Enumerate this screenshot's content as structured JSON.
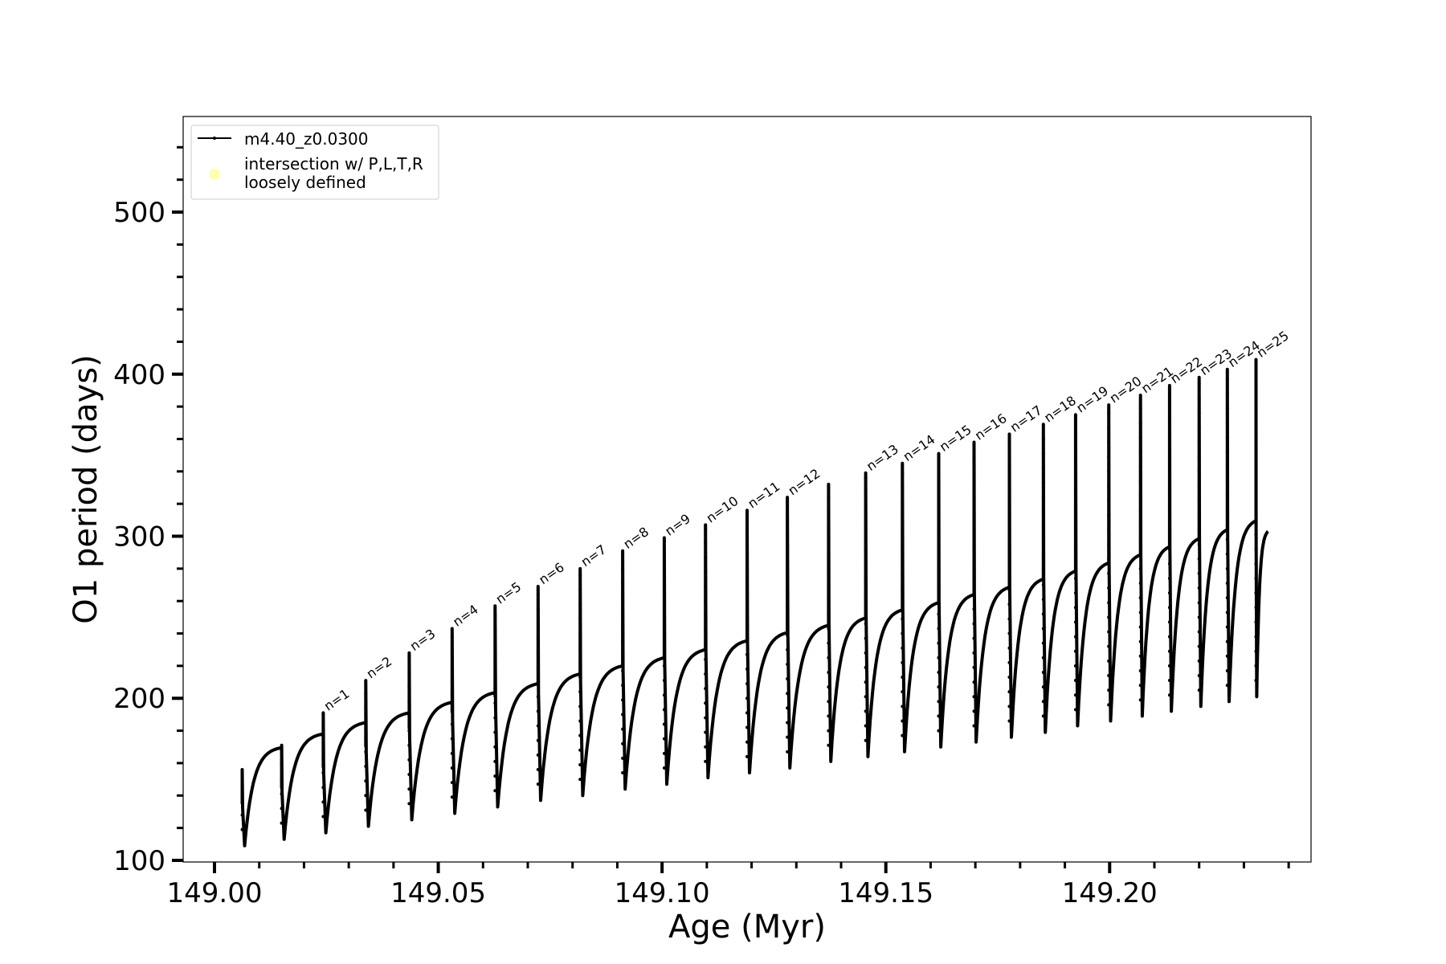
{
  "chart_data": {
    "type": "line",
    "xlabel": "Age (Myr)",
    "ylabel": "O1 period (days)",
    "xlim": [
      148.993,
      149.245
    ],
    "ylim": [
      99,
      559
    ],
    "xticks": [
      149.0,
      149.05,
      149.1,
      149.15,
      149.2
    ],
    "xtick_labels": [
      "149.00",
      "149.05",
      "149.10",
      "149.15",
      "149.20"
    ],
    "x_minor_step": 0.01,
    "yticks": [
      100,
      200,
      300,
      400,
      500
    ],
    "ytick_labels": [
      "100",
      "200",
      "300",
      "400",
      "500"
    ],
    "y_minor_step": 20,
    "grid": false,
    "legend": {
      "position": "top-left",
      "entries": [
        {
          "label": "m4.40_z0.0300",
          "marker": "line-dot",
          "color": "#000000"
        },
        {
          "label_lines": [
            "intersection w/ P,L,T,R",
            "loosely defined"
          ],
          "marker": "circle",
          "color": "#ffffb0"
        }
      ]
    },
    "series": [
      {
        "name": "m4.40_z0.0300",
        "color": "#000000",
        "initial": {
          "x": 149.0062,
          "peak": 156,
          "min": 109,
          "end": 169.5
        },
        "pulses": [
          {
            "x": 149.015,
            "peak": 171,
            "min": 113,
            "end": 178
          },
          {
            "x": 149.0243,
            "peak": 191,
            "min": 117,
            "end": 185
          },
          {
            "x": 149.0338,
            "peak": 211,
            "min": 121,
            "end": 191
          },
          {
            "x": 149.0435,
            "peak": 228,
            "min": 125,
            "end": 197.5
          },
          {
            "x": 149.0531,
            "peak": 243,
            "min": 129,
            "end": 203.5
          },
          {
            "x": 149.0627,
            "peak": 257,
            "min": 133,
            "end": 209
          },
          {
            "x": 149.0723,
            "peak": 269,
            "min": 137,
            "end": 215
          },
          {
            "x": 149.0817,
            "peak": 280,
            "min": 140,
            "end": 220
          },
          {
            "x": 149.0912,
            "peak": 291,
            "min": 144,
            "end": 225
          },
          {
            "x": 149.1005,
            "peak": 299,
            "min": 147,
            "end": 230
          },
          {
            "x": 149.1097,
            "peak": 307,
            "min": 151,
            "end": 235.5
          },
          {
            "x": 149.119,
            "peak": 316,
            "min": 154,
            "end": 240.5
          },
          {
            "x": 149.128,
            "peak": 324,
            "min": 157,
            "end": 245
          },
          {
            "x": 149.1372,
            "peak": 332,
            "min": 161,
            "end": 249.5
          },
          {
            "x": 149.1455,
            "peak": 339,
            "min": 164,
            "end": 254.5
          },
          {
            "x": 149.1537,
            "peak": 345,
            "min": 167,
            "end": 259
          },
          {
            "x": 149.1618,
            "peak": 351,
            "min": 170,
            "end": 264
          },
          {
            "x": 149.1697,
            "peak": 358,
            "min": 173,
            "end": 268.5
          },
          {
            "x": 149.1776,
            "peak": 363,
            "min": 176,
            "end": 273.5
          },
          {
            "x": 149.1852,
            "peak": 369,
            "min": 179,
            "end": 278.5
          },
          {
            "x": 149.1924,
            "peak": 375,
            "min": 183,
            "end": 283.5
          },
          {
            "x": 149.1998,
            "peak": 381,
            "min": 186,
            "end": 288.5
          },
          {
            "x": 149.2069,
            "peak": 387,
            "min": 189,
            "end": 293.5
          },
          {
            "x": 149.2134,
            "peak": 393,
            "min": 192,
            "end": 298.5
          },
          {
            "x": 149.22,
            "peak": 398,
            "min": 195,
            "end": 304
          },
          {
            "x": 149.2263,
            "peak": 403,
            "min": 198,
            "end": 309.5
          },
          {
            "x": 149.2327,
            "peak": 409,
            "min": 201,
            "end": 303
          }
        ]
      }
    ],
    "annotations": [
      {
        "text": "n=1",
        "x": 149.0243,
        "y": 191
      },
      {
        "text": "n=2",
        "x": 149.0338,
        "y": 211
      },
      {
        "text": "n=3",
        "x": 149.0435,
        "y": 228
      },
      {
        "text": "n=4",
        "x": 149.0531,
        "y": 243
      },
      {
        "text": "n=5",
        "x": 149.0627,
        "y": 257
      },
      {
        "text": "n=6",
        "x": 149.0723,
        "y": 269
      },
      {
        "text": "n=7",
        "x": 149.0817,
        "y": 280
      },
      {
        "text": "n=8",
        "x": 149.0912,
        "y": 291
      },
      {
        "text": "n=9",
        "x": 149.1005,
        "y": 299
      },
      {
        "text": "n=10",
        "x": 149.1097,
        "y": 307
      },
      {
        "text": "n=11",
        "x": 149.119,
        "y": 316
      },
      {
        "text": "n=12",
        "x": 149.128,
        "y": 324
      },
      {
        "text": "n=13",
        "x": 149.1455,
        "y": 339
      },
      {
        "text": "n=14",
        "x": 149.1537,
        "y": 345
      },
      {
        "text": "n=15",
        "x": 149.1618,
        "y": 351
      },
      {
        "text": "n=16",
        "x": 149.1697,
        "y": 358
      },
      {
        "text": "n=17",
        "x": 149.1776,
        "y": 363
      },
      {
        "text": "n=18",
        "x": 149.1852,
        "y": 369
      },
      {
        "text": "n=19",
        "x": 149.1924,
        "y": 375
      },
      {
        "text": "n=20",
        "x": 149.1998,
        "y": 381
      },
      {
        "text": "n=21",
        "x": 149.2069,
        "y": 387
      },
      {
        "text": "n=22",
        "x": 149.2134,
        "y": 393
      },
      {
        "text": "n=23",
        "x": 149.22,
        "y": 398
      },
      {
        "text": "n=24",
        "x": 149.2263,
        "y": 403
      },
      {
        "text": "n=25",
        "x": 149.2327,
        "y": 409
      }
    ]
  }
}
